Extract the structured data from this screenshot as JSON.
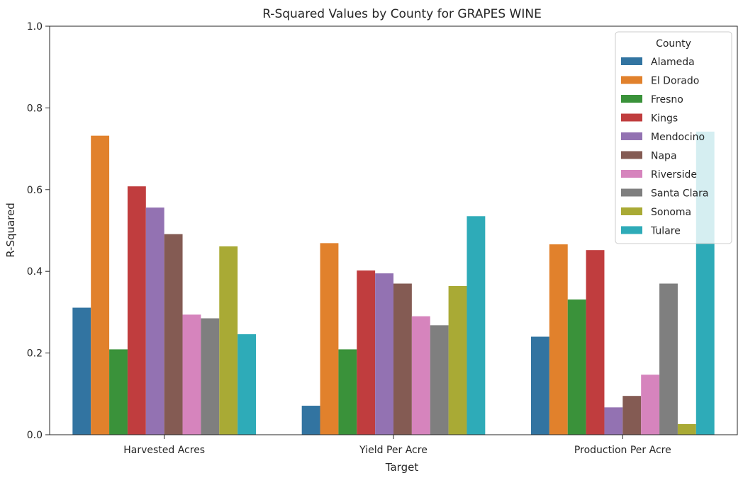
{
  "chart_data": {
    "type": "bar",
    "title": "R-Squared Values by County for GRAPES WINE",
    "xlabel": "Target",
    "ylabel": "R-Squared",
    "ylim": [
      0,
      1.0
    ],
    "yticks": [
      "0.0",
      "0.2",
      "0.4",
      "0.6",
      "0.8",
      "1.0"
    ],
    "categories": [
      "Harvested Acres",
      "Yield Per Acre",
      "Production Per Acre"
    ],
    "legend": {
      "title": "County",
      "placement": "top-right"
    },
    "grid": false,
    "series": [
      {
        "name": "Alameda",
        "color": "#3274a1",
        "values": [
          0.311,
          0.071,
          0.24
        ]
      },
      {
        "name": "El Dorado",
        "color": "#e1812c",
        "values": [
          0.732,
          0.469,
          0.466
        ]
      },
      {
        "name": "Fresno",
        "color": "#3a923a",
        "values": [
          0.209,
          0.209,
          0.331
        ]
      },
      {
        "name": "Kings",
        "color": "#c03d3e",
        "values": [
          0.608,
          0.402,
          0.452
        ]
      },
      {
        "name": "Mendocino",
        "color": "#9372b2",
        "values": [
          0.556,
          0.395,
          0.067
        ]
      },
      {
        "name": "Napa",
        "color": "#845b53",
        "values": [
          0.491,
          0.37,
          0.095
        ]
      },
      {
        "name": "Riverside",
        "color": "#d684bd",
        "values": [
          0.294,
          0.29,
          0.147
        ]
      },
      {
        "name": "Santa Clara",
        "color": "#7f7f7f",
        "values": [
          0.285,
          0.268,
          0.37
        ]
      },
      {
        "name": "Sonoma",
        "color": "#a9aa35",
        "values": [
          0.461,
          0.364,
          0.026
        ]
      },
      {
        "name": "Tulare",
        "color": "#2eabb8",
        "values": [
          0.246,
          0.535,
          0.742
        ]
      }
    ]
  }
}
